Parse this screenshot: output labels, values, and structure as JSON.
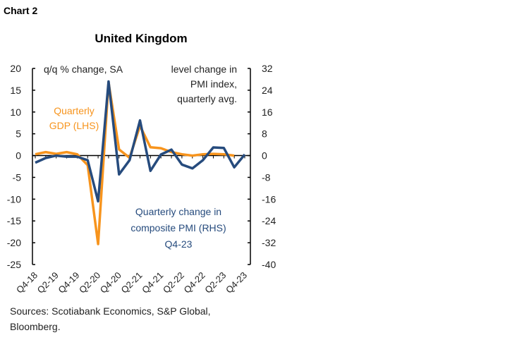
{
  "label": "Chart 2",
  "sources": [
    "Sources: Scotiabank Economics, S&P Global,",
    "Bloomberg."
  ],
  "chart_data": {
    "type": "line",
    "title": "United Kingdom",
    "left_axis_label": "q/q % change, SA",
    "right_axis_label": [
      "level change in",
      "PMI index,",
      "quarterly avg."
    ],
    "categories": [
      "Q4-18",
      "Q1-19",
      "Q2-19",
      "Q3-19",
      "Q4-19",
      "Q1-20",
      "Q2-20",
      "Q3-20",
      "Q4-20",
      "Q1-21",
      "Q2-21",
      "Q3-21",
      "Q4-21",
      "Q1-22",
      "Q2-22",
      "Q3-22",
      "Q4-22",
      "Q1-23",
      "Q2-23",
      "Q3-23",
      "Q4-23"
    ],
    "x_tick_labels": [
      "Q4-18",
      "Q2-19",
      "Q4-19",
      "Q2-20",
      "Q4-20",
      "Q2-21",
      "Q4-21",
      "Q2-22",
      "Q4-22",
      "Q2-23",
      "Q4-23"
    ],
    "ylim_left": [
      -25,
      20
    ],
    "yticks_left": [
      20,
      15,
      10,
      5,
      0,
      -5,
      -10,
      -15,
      -20,
      -25
    ],
    "ylim_right": [
      -40,
      32
    ],
    "yticks_right": [
      32,
      24,
      16,
      8,
      0,
      -8,
      -16,
      -24,
      -32,
      -40
    ],
    "grid": false,
    "series": [
      {
        "name": "Quarterly GDP (LHS)",
        "label_lines": [
          "Quarterly",
          "GDP (LHS)"
        ],
        "axis": "left",
        "color": "#f7941d",
        "values": [
          0.3,
          0.8,
          0.4,
          0.8,
          0.3,
          -2.2,
          -20.3,
          16.8,
          1.4,
          -0.5,
          6.8,
          1.9,
          1.7,
          0.8,
          0.3,
          0.0,
          0.3,
          0.4,
          0.3,
          0.0,
          null
        ]
      },
      {
        "name": "Quarterly change in composite PMI (RHS) Q4-23",
        "label_lines": [
          "Quarterly change in",
          "composite PMI (RHS)",
          "Q4-23"
        ],
        "axis": "right",
        "color": "#264b7d",
        "values": [
          -2.6,
          -0.9,
          0.0,
          -0.4,
          -0.4,
          -1.7,
          -16.8,
          27.2,
          -6.9,
          -1.7,
          12.9,
          -5.6,
          0.4,
          2.2,
          -3.3,
          -4.7,
          -1.7,
          3.0,
          2.8,
          -4.3,
          0.4
        ]
      }
    ]
  }
}
